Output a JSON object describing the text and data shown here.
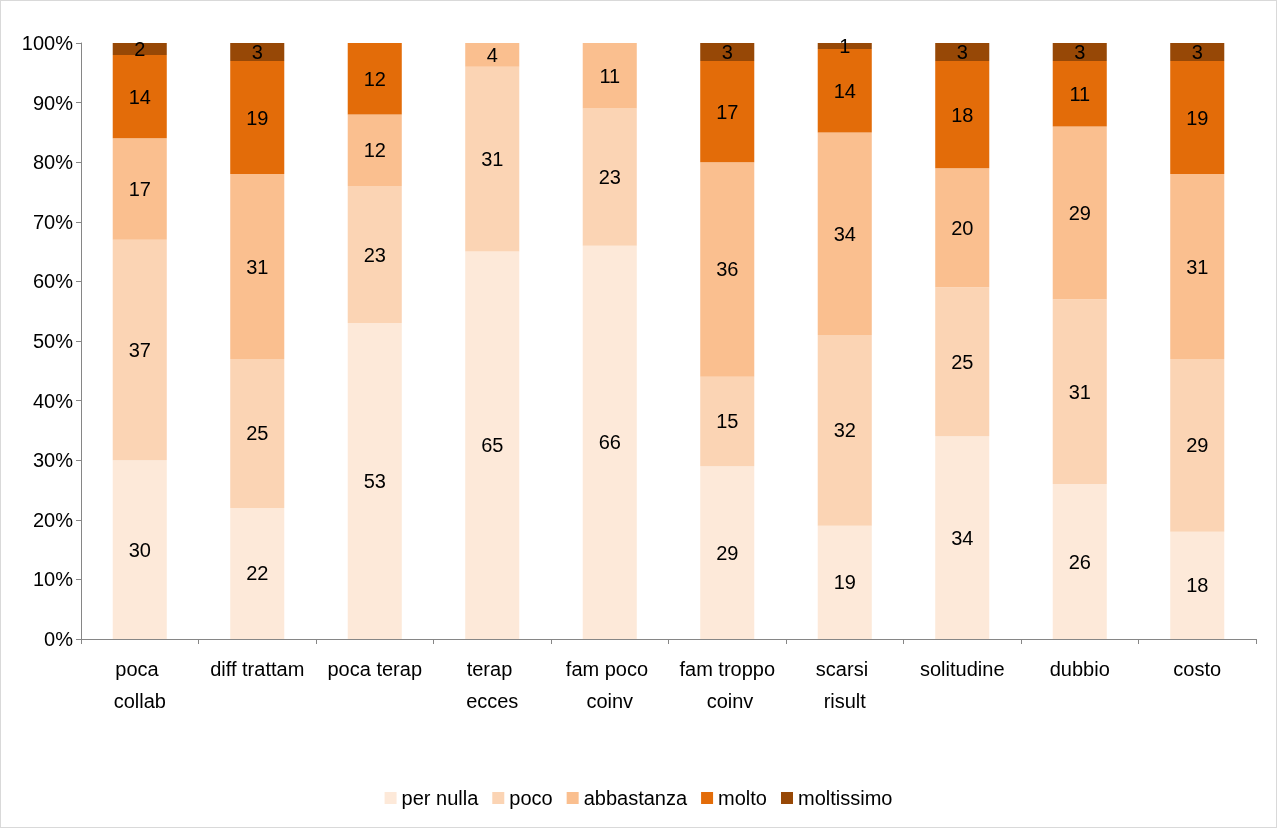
{
  "chart_data": {
    "type": "bar",
    "stacked": true,
    "categories": [
      "poca collab",
      "diff trattam",
      "poca terap",
      "terap ecces",
      "fam poco coinv",
      "fam troppo coinv",
      "scarsi risult",
      "solitudine",
      "dubbio",
      "costo"
    ],
    "series": [
      {
        "name": "per nulla",
        "color": "#fde9d9",
        "values": [
          30,
          22,
          53,
          65,
          66,
          29,
          19,
          34,
          26,
          18
        ]
      },
      {
        "name": "poco",
        "color": "#fbd4b4",
        "values": [
          37,
          25,
          23,
          31,
          23,
          15,
          32,
          25,
          31,
          29
        ]
      },
      {
        "name": "abbastanza",
        "color": "#fabf8f",
        "values": [
          17,
          31,
          12,
          4,
          11,
          36,
          34,
          20,
          29,
          31
        ]
      },
      {
        "name": "molto",
        "color": "#e36c09",
        "values": [
          14,
          19,
          12,
          null,
          null,
          17,
          14,
          18,
          11,
          19
        ]
      },
      {
        "name": "moltissimo",
        "color": "#974806",
        "values": [
          2,
          3,
          null,
          null,
          null,
          3,
          1,
          3,
          3,
          3
        ]
      }
    ],
    "ylim": [
      0,
      100
    ],
    "yticks": [
      {
        "value": 0,
        "label": "0%"
      },
      {
        "value": 10,
        "label": "10%"
      },
      {
        "value": 20,
        "label": "20%"
      },
      {
        "value": 30,
        "label": "30%"
      },
      {
        "value": 40,
        "label": "40%"
      },
      {
        "value": 50,
        "label": "50%"
      },
      {
        "value": 60,
        "label": "60%"
      },
      {
        "value": 70,
        "label": "70%"
      },
      {
        "value": 80,
        "label": "80%"
      },
      {
        "value": 90,
        "label": "90%"
      },
      {
        "value": 100,
        "label": "100%"
      }
    ],
    "data_labels": true,
    "grid": false,
    "legend": "bottom"
  }
}
